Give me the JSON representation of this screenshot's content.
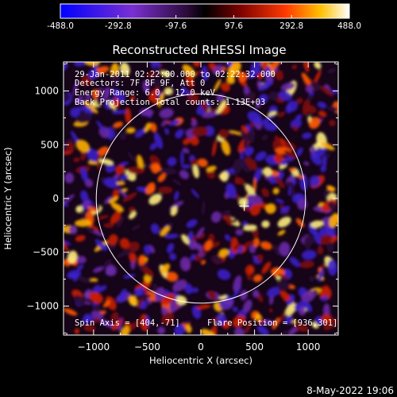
{
  "colorbar": {
    "ticks": [
      "-488.0",
      "-292.8",
      "-97.6",
      "97.6",
      "292.8",
      "488.0"
    ],
    "tick_values": [
      -488.0,
      -292.8,
      -97.6,
      97.6,
      292.8,
      488.0
    ],
    "range": [
      -488.0,
      488.0
    ]
  },
  "chart_data": {
    "type": "heatmap",
    "title": "Reconstructed RHESSI Image",
    "xlabel": "Heliocentric X (arcsec)",
    "ylabel": "Heliocentric Y (arcsec)",
    "xlim": [
      -1280,
      1280
    ],
    "ylim": [
      -1270,
      1270
    ],
    "x_ticks": [
      -1000,
      -500,
      0,
      500,
      1000
    ],
    "y_ticks": [
      -1000,
      -500,
      0,
      500,
      1000
    ],
    "x_tick_labels": [
      "−1000",
      "−500",
      "0",
      "500",
      "1000"
    ],
    "y_tick_labels": [
      "−1000",
      "−500",
      "0",
      "500",
      "1000"
    ],
    "value_range": [
      -488.0,
      488.0
    ],
    "colormap": "red-temperature",
    "solar_disk": {
      "center": [
        0,
        0
      ],
      "radius": 975
    },
    "marker": {
      "x": 404,
      "y": -71,
      "symbol": "+"
    },
    "annotations": [
      "29-Jan-2011 02:22:00.000 to 02:22:32.000",
      "Detectors: 7F 8F 9F, Att 0",
      "Energy Range: 6.0 - 12.0 keV",
      "Back Projection    Total counts: 1.13E+03"
    ],
    "footer_left": "Spin Axis = [404,-71]",
    "footer_right": "Flare Position = [936,301]"
  },
  "timestamp": "8-May-2022 19:06"
}
